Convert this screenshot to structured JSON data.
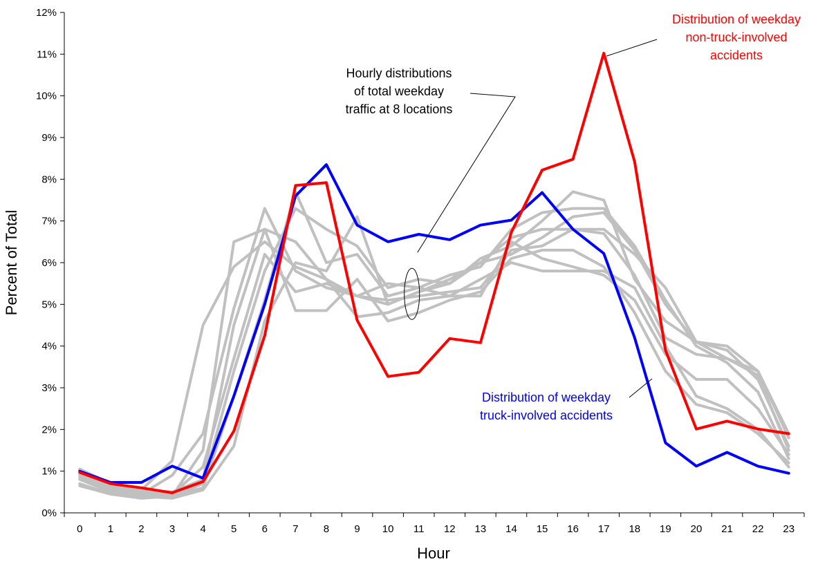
{
  "chart_data": {
    "type": "line",
    "title": "",
    "xlabel": "Hour",
    "ylabel": "Percent of Total",
    "x": [
      0,
      1,
      2,
      3,
      4,
      5,
      6,
      7,
      8,
      9,
      10,
      11,
      12,
      13,
      14,
      15,
      16,
      17,
      18,
      19,
      20,
      21,
      22,
      23
    ],
    "ylim": [
      0,
      12
    ],
    "yticks": [
      "0%",
      "1%",
      "2%",
      "3%",
      "4%",
      "5%",
      "6%",
      "7%",
      "8%",
      "9%",
      "10%",
      "11%",
      "12%"
    ],
    "grid": false,
    "colors": {
      "traffic": "#c0c0c0",
      "truck": "#0000ff",
      "nontruck": "#ff0000",
      "annotation": "#000000"
    },
    "traffic_series": [
      [
        1.05,
        0.7,
        0.55,
        0.5,
        0.8,
        4.5,
        6.8,
        6.5,
        5.6,
        5.2,
        5.0,
        5.3,
        5.6,
        6.0,
        6.6,
        6.8,
        6.8,
        6.7,
        5.7,
        4.2,
        3.8,
        3.7,
        3.4,
        1.9
      ],
      [
        0.95,
        0.6,
        0.5,
        0.45,
        1.1,
        3.7,
        6.2,
        5.3,
        5.5,
        5.2,
        5.1,
        5.2,
        5.3,
        5.4,
        6.3,
        6.4,
        6.8,
        6.8,
        6.2,
        5.4,
        4.1,
        4.0,
        3.4,
        1.8
      ],
      [
        0.9,
        0.55,
        0.45,
        0.4,
        0.7,
        3.4,
        5.8,
        7.3,
        6.8,
        6.4,
        5.4,
        5.6,
        5.5,
        6.1,
        6.4,
        7.0,
        7.7,
        7.5,
        5.6,
        4.6,
        4.1,
        3.7,
        3.3,
        1.5
      ],
      [
        0.8,
        0.5,
        0.4,
        0.4,
        0.6,
        2.8,
        5.1,
        7.7,
        6.0,
        6.2,
        5.2,
        5.4,
        5.7,
        5.9,
        6.8,
        7.2,
        7.3,
        7.3,
        6.4,
        5.1,
        4.0,
        3.6,
        2.9,
        1.3
      ],
      [
        0.7,
        0.45,
        0.4,
        0.35,
        0.55,
        1.6,
        4.6,
        6.0,
        5.8,
        7.1,
        5.0,
        5.3,
        5.5,
        6.0,
        6.2,
        6.6,
        7.1,
        7.2,
        6.3,
        5.0,
        4.1,
        3.9,
        3.2,
        1.6
      ],
      [
        0.65,
        0.45,
        0.35,
        0.4,
        1.5,
        6.5,
        6.8,
        4.85,
        4.85,
        5.6,
        4.6,
        4.8,
        5.1,
        5.3,
        6.1,
        6.3,
        6.3,
        5.9,
        4.8,
        3.4,
        2.6,
        2.4,
        1.9,
        1.2
      ],
      [
        0.85,
        0.55,
        0.45,
        0.9,
        1.9,
        4.9,
        7.3,
        5.8,
        5.4,
        5.2,
        5.5,
        5.4,
        5.2,
        5.2,
        6.5,
        6.1,
        5.9,
        5.7,
        5.1,
        3.8,
        3.2,
        3.2,
        2.5,
        1.4
      ],
      [
        1.0,
        0.65,
        0.55,
        1.25,
        4.5,
        5.9,
        6.5,
        5.9,
        5.6,
        4.7,
        4.8,
        5.1,
        5.2,
        5.6,
        6.0,
        5.8,
        5.8,
        5.8,
        5.4,
        4.0,
        2.8,
        2.5,
        2.0,
        1.1
      ]
    ],
    "series": [
      {
        "key": "truck",
        "values": [
          1.0,
          0.73,
          0.73,
          1.12,
          0.83,
          2.8,
          5.0,
          7.6,
          8.35,
          6.9,
          6.5,
          6.68,
          6.55,
          6.9,
          7.02,
          7.68,
          6.8,
          6.22,
          4.2,
          1.68,
          1.12,
          1.45,
          1.12,
          0.95
        ]
      },
      {
        "key": "nontruck",
        "values": [
          0.97,
          0.7,
          0.6,
          0.48,
          0.75,
          1.96,
          4.25,
          7.85,
          7.92,
          4.62,
          3.27,
          3.37,
          4.18,
          4.08,
          6.73,
          8.22,
          8.48,
          11.02,
          8.42,
          3.9,
          2.01,
          2.2,
          2.01,
          1.9
        ]
      }
    ],
    "annotations": {
      "traffic": [
        "Hourly distributions",
        "of total weekday",
        "traffic at 8 locations"
      ],
      "nontruck": [
        "Distribution of weekday",
        "non-truck-involved",
        "accidents"
      ],
      "truck": [
        "Distribution of weekday",
        "truck-involved accidents"
      ]
    }
  }
}
